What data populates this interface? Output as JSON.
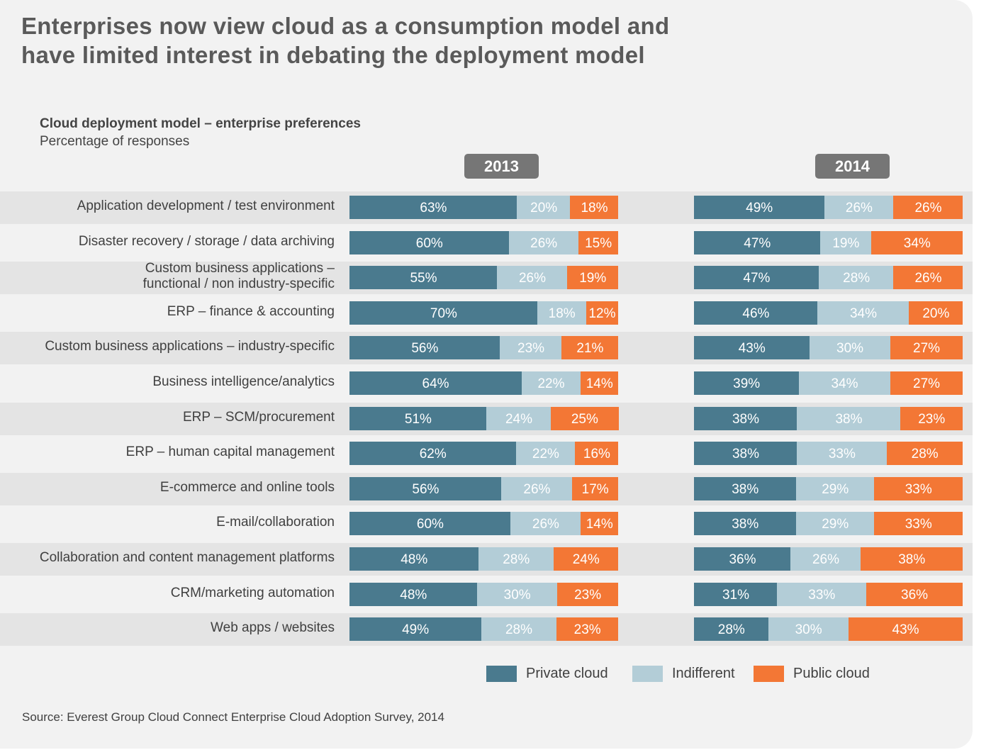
{
  "title": "Enterprises now view cloud as a consumption model and have limited interest in debating the deployment model",
  "title_lines": [
    "Enterprises now view cloud as a consumption model and",
    "have limited interest in debating the deployment model"
  ],
  "source": "Source: Everest Group Cloud Connect Enterprise Cloud Adoption Survey, 2014",
  "chart_data": {
    "type": "bar",
    "orientation": "horizontal",
    "stacked": true,
    "title": "Cloud deployment model – enterprise preferences",
    "subtitle": "Percentage of responses",
    "unit": "%",
    "legend_position": "bottom-right",
    "grid": false,
    "colors": {
      "Private cloud": "#4a7a8e",
      "Indifferent": "#b3cdd7",
      "Public cloud": "#f37735"
    },
    "series_names": [
      "Private cloud",
      "Indifferent",
      "Public cloud"
    ],
    "categories": [
      "Application development / test environment",
      "Disaster recovery / storage / data archiving",
      "Custom business applications – functional / non industry-specific",
      "ERP – finance & accounting",
      "Custom business applications – industry-specific",
      "Business intelligence/analytics",
      "ERP – SCM/procurement",
      "ERP – human capital management",
      "E-commerce and online tools",
      "E-mail/collaboration",
      "Collaboration and content management platforms",
      "CRM/marketing automation",
      "Web apps / websites"
    ],
    "category_lines": [
      [
        "Application development / test environment"
      ],
      [
        "Disaster recovery / storage / data archiving"
      ],
      [
        "Custom business applications –",
        "functional / non industry-specific"
      ],
      [
        "ERP – finance & accounting"
      ],
      [
        "Custom business applications – industry-specific"
      ],
      [
        "Business intelligence/analytics"
      ],
      [
        "ERP – SCM/procurement"
      ],
      [
        "ERP – human capital management"
      ],
      [
        "E-commerce and online tools"
      ],
      [
        "E-mail/collaboration"
      ],
      [
        "Collaboration and content management platforms"
      ],
      [
        "CRM/marketing automation"
      ],
      [
        "Web apps / websites"
      ]
    ],
    "panels": [
      {
        "year": "2013",
        "series": [
          {
            "name": "Private cloud",
            "values": [
              63,
              60,
              55,
              70,
              56,
              64,
              51,
              62,
              56,
              60,
              48,
              48,
              49
            ]
          },
          {
            "name": "Indifferent",
            "values": [
              20,
              26,
              26,
              18,
              23,
              22,
              24,
              22,
              26,
              26,
              28,
              30,
              28
            ]
          },
          {
            "name": "Public cloud",
            "values": [
              18,
              15,
              19,
              12,
              21,
              14,
              25,
              16,
              17,
              14,
              24,
              23,
              23
            ]
          }
        ]
      },
      {
        "year": "2014",
        "series": [
          {
            "name": "Private cloud",
            "values": [
              49,
              47,
              47,
              46,
              43,
              39,
              38,
              38,
              38,
              38,
              36,
              31,
              28
            ]
          },
          {
            "name": "Indifferent",
            "values": [
              26,
              19,
              28,
              34,
              30,
              34,
              38,
              33,
              29,
              29,
              26,
              33,
              30
            ]
          },
          {
            "name": "Public cloud",
            "values": [
              26,
              34,
              26,
              20,
              27,
              27,
              23,
              28,
              33,
              33,
              38,
              36,
              43
            ]
          }
        ]
      }
    ]
  }
}
